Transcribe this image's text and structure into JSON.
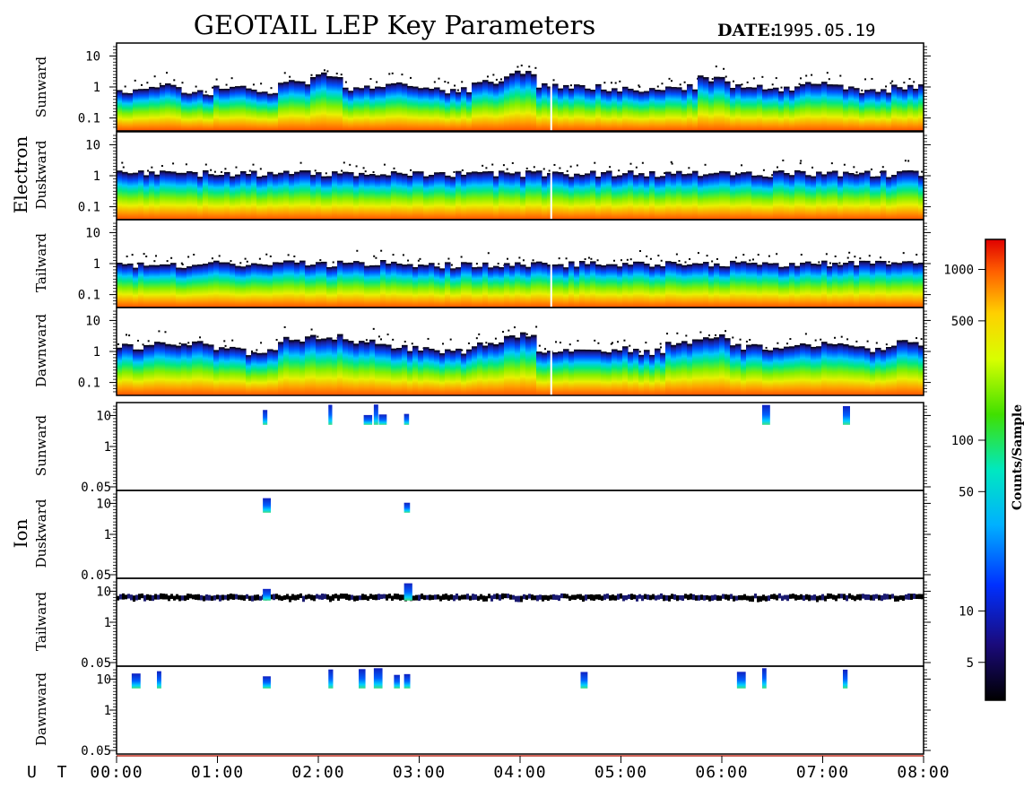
{
  "title": "GEOTAIL LEP Key Parameters",
  "date_label": "DATE:",
  "date_value": "1995.05.19",
  "ut_label": "U T",
  "groups": [
    {
      "name": "Electron",
      "panels": [
        "Sunward",
        "Duskward",
        "Tailward",
        "Dawnward"
      ]
    },
    {
      "name": "Ion",
      "panels": [
        "Sunward",
        "Duskward",
        "Tailward",
        "Dawnward"
      ]
    }
  ],
  "electron_yticks": [
    "10",
    "1",
    "0.1"
  ],
  "ion_yticks": [
    "10",
    "1",
    "0.05"
  ],
  "xticks": [
    "00:00",
    "01:00",
    "02:00",
    "03:00",
    "04:00",
    "05:00",
    "06:00",
    "07:00",
    "08:00"
  ],
  "colorbar": {
    "label": "Counts/Sample",
    "ticks": [
      "1000",
      "500",
      "100",
      "50",
      "10",
      "5"
    ],
    "tick_values": [
      1000,
      500,
      100,
      50,
      10,
      5
    ],
    "min": 3,
    "max": 1500,
    "scale": "log"
  },
  "chart_data": {
    "type": "heatmap",
    "title": "GEOTAIL LEP Key Parameters",
    "x_unit": "UT (hours)",
    "xlim": [
      0,
      8
    ],
    "electron_ylim": [
      0.05,
      20
    ],
    "ion_ylim": [
      0.05,
      20
    ],
    "yscale": "log",
    "colorscale": "log",
    "data_gap_hour": 4.3,
    "series": [
      {
        "group": "Electron",
        "name": "Sunward",
        "upper_edge": [
          0.8,
          1.2,
          0.7,
          0.9,
          0.8,
          1.4,
          2.5,
          1.0,
          1.3,
          0.9,
          0.8,
          1.6,
          2.8,
          1.1,
          1.0,
          0.9,
          0.8,
          1.0,
          2.0,
          1.2,
          0.9,
          1.3,
          1.0,
          0.8,
          1.1
        ]
      },
      {
        "group": "Electron",
        "name": "Duskward",
        "upper_edge": [
          1.2,
          1.2,
          1.2,
          1.2,
          1.2,
          1.2,
          1.2,
          1.2,
          1.2,
          1.2,
          1.2,
          1.2,
          1.2,
          1.2,
          1.2,
          1.2,
          1.2,
          1.2,
          1.2,
          1.2,
          1.2,
          1.2,
          1.2,
          1.2,
          1.2
        ]
      },
      {
        "group": "Electron",
        "name": "Tailward",
        "upper_edge": [
          0.9,
          0.9,
          0.9,
          1.0,
          0.9,
          1.1,
          1.0,
          1.0,
          1.1,
          1.0,
          0.9,
          1.0,
          1.0,
          1.0,
          1.0,
          1.0,
          1.0,
          1.0,
          1.0,
          1.0,
          1.0,
          1.0,
          1.0,
          1.0,
          1.0
        ]
      },
      {
        "group": "Electron",
        "name": "Dawnward",
        "upper_edge": [
          1.5,
          2.0,
          1.8,
          1.2,
          1.0,
          2.5,
          3.0,
          2.2,
          1.5,
          1.3,
          1.0,
          1.8,
          3.5,
          1.2,
          1.0,
          1.2,
          1.0,
          2.0,
          3.0,
          1.5,
          1.3,
          1.8,
          1.5,
          1.2,
          2.0
        ]
      },
      {
        "group": "Ion",
        "name": "Sunward",
        "bursts_hours": [
          1.45,
          2.1,
          2.45,
          2.55,
          2.6,
          2.85,
          6.4,
          7.2
        ]
      },
      {
        "group": "Ion",
        "name": "Duskward",
        "bursts_hours": [
          1.45,
          2.85
        ]
      },
      {
        "group": "Ion",
        "name": "Tailward",
        "bursts_hours": [
          1.45,
          2.85
        ],
        "band_level": 7
      },
      {
        "group": "Ion",
        "name": "Dawnward",
        "bursts_hours": [
          0.15,
          0.4,
          1.45,
          2.1,
          2.4,
          2.55,
          2.75,
          2.85,
          4.6,
          6.15,
          6.4,
          7.2
        ]
      }
    ]
  }
}
